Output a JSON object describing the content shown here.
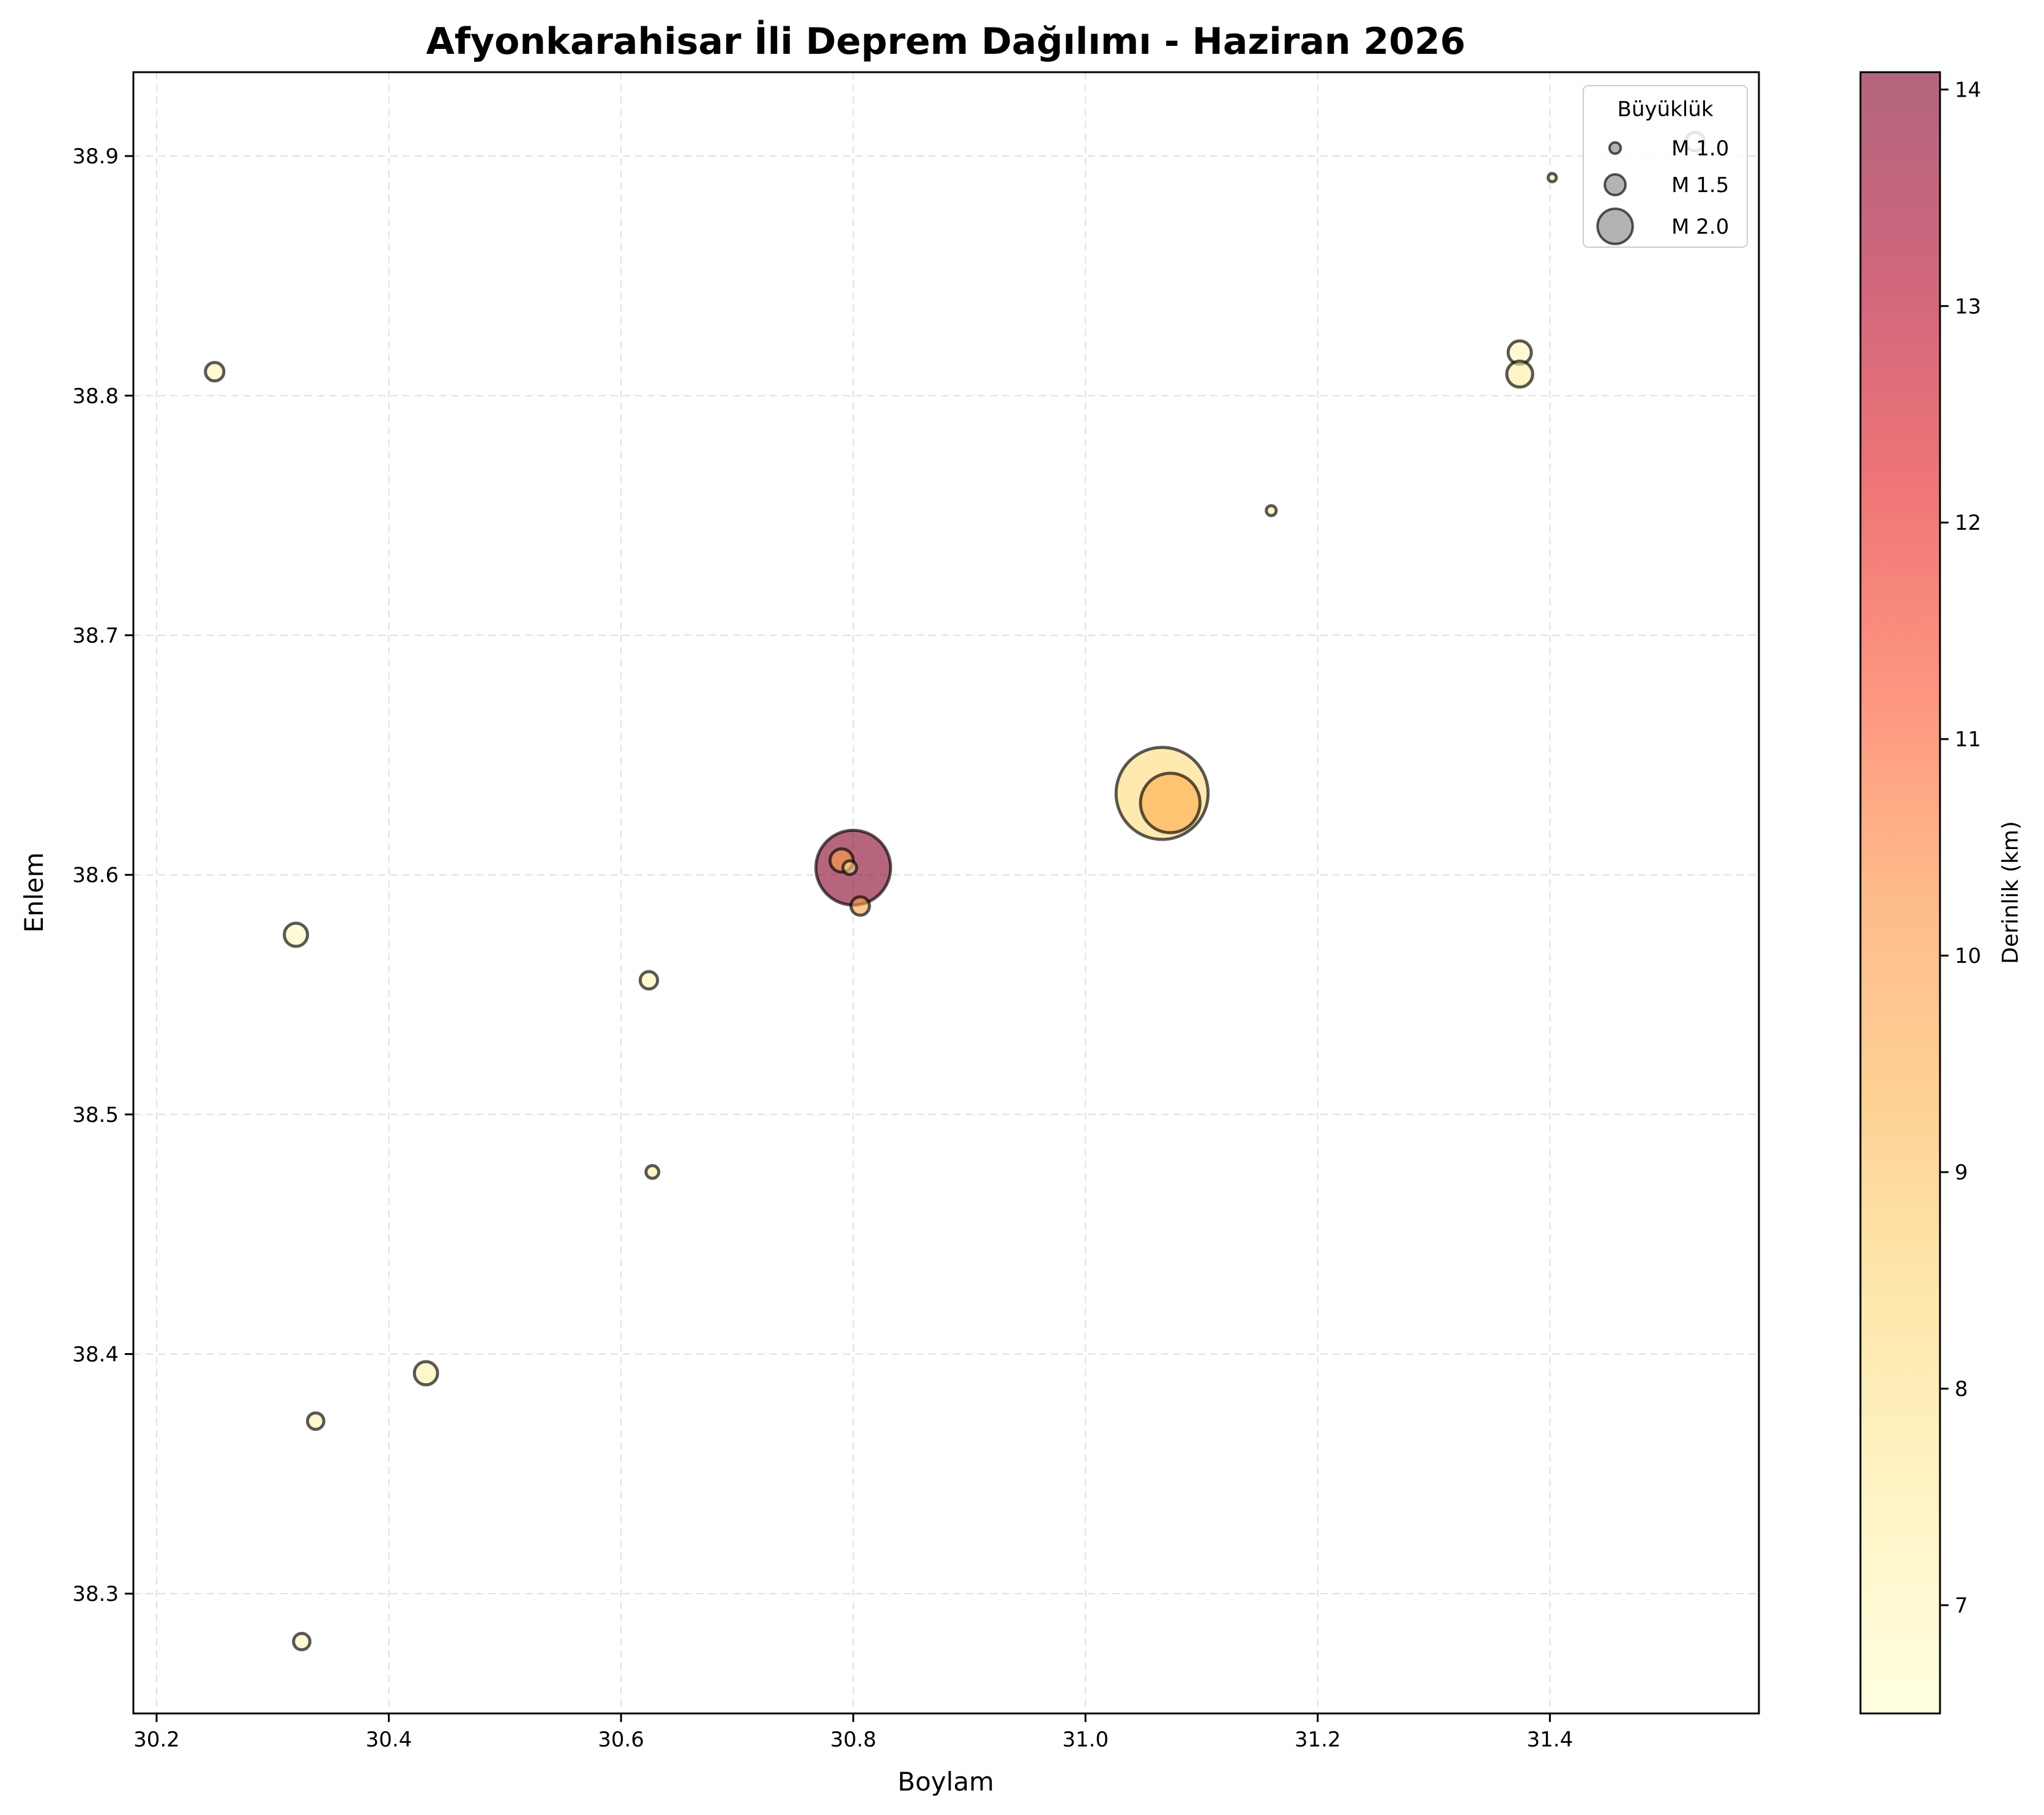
{
  "chart_data": {
    "type": "scatter",
    "title": "Afyonkarahisar İli Deprem Dağılımı - Haziran 2026",
    "xlabel": "Boylam",
    "ylabel": "Enlem",
    "xlim": [
      30.18,
      31.58
    ],
    "ylim": [
      38.25,
      38.935
    ],
    "x_ticks": [
      30.2,
      30.4,
      30.6,
      30.8,
      31.0,
      31.2,
      31.4
    ],
    "y_ticks": [
      38.3,
      38.4,
      38.5,
      38.6,
      38.7,
      38.8,
      38.9
    ],
    "x_tick_labels": [
      "30.2",
      "30.4",
      "30.6",
      "30.8",
      "31.0",
      "31.2",
      "31.4"
    ],
    "y_tick_labels": [
      "38.3",
      "38.4",
      "38.5",
      "38.6",
      "38.7",
      "38.8",
      "38.9"
    ],
    "grid": true,
    "points": [
      {
        "lon": 30.25,
        "lat": 38.81,
        "mag": 1.4,
        "depth": 7.0
      },
      {
        "lon": 30.32,
        "lat": 38.575,
        "mag": 1.6,
        "depth": 6.9
      },
      {
        "lon": 30.325,
        "lat": 38.28,
        "mag": 1.3,
        "depth": 7.0
      },
      {
        "lon": 30.337,
        "lat": 38.372,
        "mag": 1.3,
        "depth": 7.2
      },
      {
        "lon": 30.432,
        "lat": 38.392,
        "mag": 1.6,
        "depth": 7.3
      },
      {
        "lon": 30.624,
        "lat": 38.556,
        "mag": 1.35,
        "depth": 7.2
      },
      {
        "lon": 30.627,
        "lat": 38.476,
        "mag": 1.1,
        "depth": 7.5
      },
      {
        "lon": 30.8,
        "lat": 38.603,
        "mag": 2.9,
        "depth": 14.0
      },
      {
        "lon": 30.79,
        "lat": 38.606,
        "mag": 1.6,
        "depth": 9.8
      },
      {
        "lon": 30.797,
        "lat": 38.603,
        "mag": 1.15,
        "depth": 8.0
      },
      {
        "lon": 30.806,
        "lat": 38.587,
        "mag": 1.4,
        "depth": 9.8
      },
      {
        "lon": 31.066,
        "lat": 38.634,
        "mag": 3.2,
        "depth": 8.3
      },
      {
        "lon": 31.073,
        "lat": 38.63,
        "mag": 2.6,
        "depth": 9.5
      },
      {
        "lon": 31.16,
        "lat": 38.752,
        "mag": 0.9,
        "depth": 7.5
      },
      {
        "lon": 31.374,
        "lat": 38.818,
        "mag": 1.6,
        "depth": 7.0
      },
      {
        "lon": 31.374,
        "lat": 38.809,
        "mag": 1.7,
        "depth": 7.5
      },
      {
        "lon": 31.402,
        "lat": 38.891,
        "mag": 0.75,
        "depth": 7.5
      },
      {
        "lon": 31.525,
        "lat": 38.906,
        "mag": 1.4,
        "depth": 7.0
      }
    ],
    "legend": {
      "title": "Büyüklük",
      "placement": "top-right",
      "entries": [
        {
          "label": "M 1.0",
          "mag": 1.0
        },
        {
          "label": "M 1.5",
          "mag": 1.5
        },
        {
          "label": "M 2.0",
          "mag": 2.0
        }
      ]
    },
    "colorbar": {
      "label": "Derinlik (km)",
      "range": [
        6.5,
        14.08
      ],
      "ticks": [
        7,
        8,
        9,
        10,
        11,
        12,
        13,
        14
      ],
      "tick_labels": [
        "7",
        "8",
        "9",
        "10",
        "11",
        "12",
        "13",
        "14"
      ],
      "colormap": "YlOrRd",
      "colors": [
        "#ffffcc",
        "#ffeda0",
        "#fed976",
        "#feb24c",
        "#fd8d3c",
        "#fc4e2a",
        "#e31a1c",
        "#b10026",
        "#800026"
      ]
    }
  }
}
